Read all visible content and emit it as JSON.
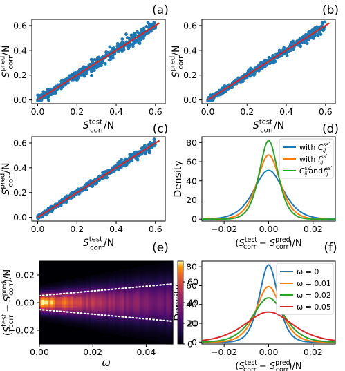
{
  "figure": {
    "panel_labels": [
      "(a)",
      "(b)",
      "(c)",
      "(d)",
      "(e)",
      "(f)"
    ]
  },
  "chart_data": [
    {
      "panel": "(a)",
      "type": "scatter",
      "xlabel": "S_corr^test / N",
      "ylabel": "S_corr^pred / N",
      "xlim": [
        -0.03,
        0.65
      ],
      "ylim": [
        -0.03,
        0.65
      ],
      "xticks": [
        0.0,
        0.2,
        0.4,
        0.6
      ],
      "yticks": [
        0.0,
        0.2,
        0.4,
        0.6
      ],
      "tick_labels": [
        "0.0",
        "0.2",
        "0.4",
        "0.6"
      ],
      "reference_line": {
        "x": [
          0.0,
          0.62
        ],
        "y": [
          0.0,
          0.62
        ],
        "color": "#d62728"
      },
      "point_color": "#1f77b4",
      "spread": 0.025
    },
    {
      "panel": "(b)",
      "type": "scatter",
      "xlabel": "S_corr^test / N",
      "ylabel": "S_corr^pred / N",
      "xlim": [
        -0.03,
        0.65
      ],
      "ylim": [
        -0.03,
        0.65
      ],
      "xticks": [
        0.0,
        0.2,
        0.4,
        0.6
      ],
      "yticks": [
        0.0,
        0.2,
        0.4,
        0.6
      ],
      "tick_labels": [
        "0.0",
        "0.2",
        "0.4",
        "0.6"
      ],
      "reference_line": {
        "x": [
          0.0,
          0.62
        ],
        "y": [
          0.0,
          0.62
        ],
        "color": "#d62728"
      },
      "point_color": "#1f77b4",
      "spread": 0.018
    },
    {
      "panel": "(c)",
      "type": "scatter",
      "xlabel": "S_corr^test / N",
      "ylabel": "S_corr^pred / N",
      "xlim": [
        -0.03,
        0.65
      ],
      "ylim": [
        -0.03,
        0.65
      ],
      "xticks": [
        0.0,
        0.2,
        0.4,
        0.6
      ],
      "yticks": [
        0.0,
        0.2,
        0.4,
        0.6
      ],
      "tick_labels": [
        "0.0",
        "0.2",
        "0.4",
        "0.6"
      ],
      "reference_line": {
        "x": [
          0.0,
          0.62
        ],
        "y": [
          0.0,
          0.62
        ],
        "color": "#d62728"
      },
      "point_color": "#1f77b4",
      "spread": 0.015
    },
    {
      "panel": "(d)",
      "type": "line",
      "xlabel": "(S_corr^test − S_corr^pred) / N",
      "ylabel": "Density",
      "xlim": [
        -0.03,
        0.03
      ],
      "ylim": [
        -2,
        86
      ],
      "xticks": [
        -0.02,
        0.0,
        0.02
      ],
      "xtick_labels": [
        "−0.02",
        "0.00",
        "0.02"
      ],
      "yticks": [
        0,
        20,
        40,
        60,
        80
      ],
      "ytick_labels": [
        "0",
        "20",
        "40",
        "60",
        "80"
      ],
      "legend_position": "top-right",
      "series": [
        {
          "name": "with C_ij^{ss'}",
          "color": "#1f77b4",
          "peak": 51,
          "width": 0.0078
        },
        {
          "name": "with f_ij^{ss'}",
          "color": "#ff7f0e",
          "peak": 67,
          "width": 0.006
        },
        {
          "name": "C_ij^{ss'} and f_ij^{ss'}",
          "color": "#2ca02c",
          "peak": 82,
          "width": 0.0049
        }
      ]
    },
    {
      "panel": "(e)",
      "type": "heatmap",
      "xlabel": "ω",
      "ylabel": "(S_corr^test − S_corr^pred) / N",
      "xlim": [
        0.0,
        0.05
      ],
      "ylim": [
        -0.03,
        0.03
      ],
      "xticks": [
        0.0,
        0.02,
        0.04
      ],
      "xtick_labels": [
        "0.00",
        "0.02",
        "0.04"
      ],
      "yticks": [
        -0.02,
        0.0,
        0.02
      ],
      "ytick_labels": [
        "−0.02",
        "0.00",
        "0.02"
      ],
      "colorbar": {
        "range": [
          0,
          80
        ],
        "ticks": [
          0,
          20,
          40,
          60
        ],
        "tick_labels": [
          "0",
          "20",
          "40",
          "60"
        ],
        "colormap": "inferno"
      },
      "bounds_lines": {
        "style": "dotted",
        "color": "#ffffff",
        "y_at_start": 0.005,
        "y_at_end": 0.0135
      }
    },
    {
      "panel": "(f)",
      "type": "line",
      "xlabel": "(S_corr^test − S_corr^pred) / N",
      "ylabel": "Density",
      "xlim": [
        -0.03,
        0.03
      ],
      "ylim": [
        -2,
        86
      ],
      "xticks": [
        -0.02,
        0.0,
        0.02
      ],
      "xtick_labels": [
        "−0.02",
        "0.00",
        "0.02"
      ],
      "yticks": [
        0,
        20,
        40,
        60,
        80
      ],
      "ytick_labels": [
        "0",
        "20",
        "40",
        "60",
        "80"
      ],
      "legend_position": "top-right",
      "series": [
        {
          "name": "ω = 0",
          "color": "#1f77b4",
          "peak": 82,
          "width": 0.0049
        },
        {
          "name": "ω = 0.01",
          "color": "#ff7f0e",
          "peak": 59,
          "width": 0.0065
        },
        {
          "name": "ω = 0.02",
          "color": "#2ca02c",
          "peak": 47,
          "width": 0.0083
        },
        {
          "name": "ω = 0.05",
          "color": "#d62728",
          "peak": 32,
          "width": 0.0125
        }
      ]
    }
  ]
}
